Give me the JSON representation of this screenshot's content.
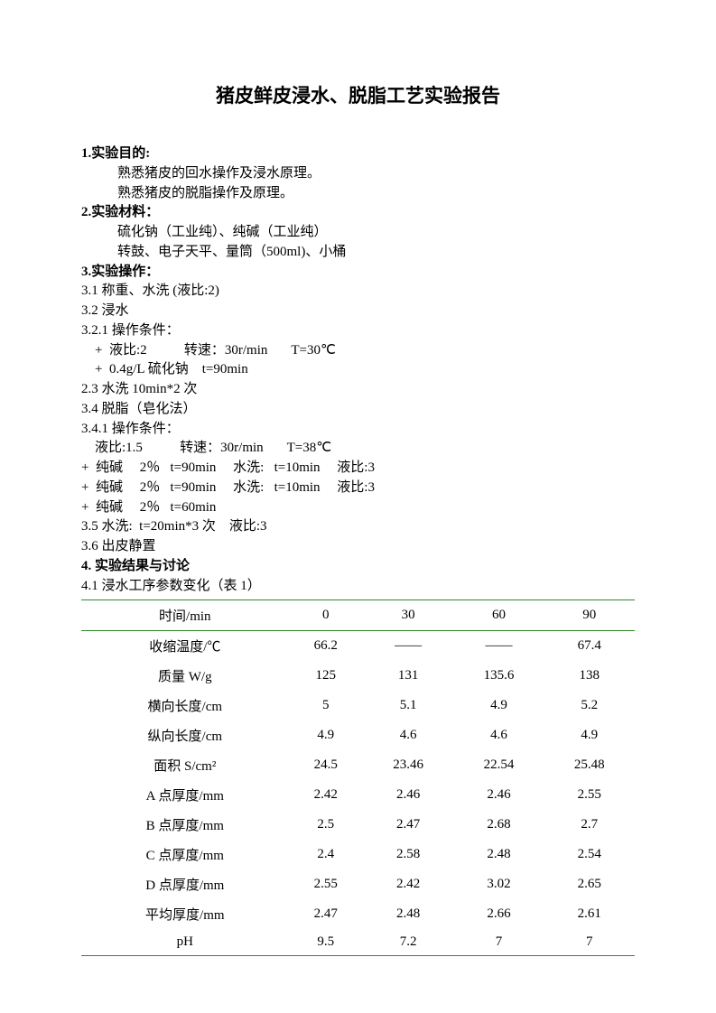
{
  "title": "猪皮鲜皮浸水、脱脂工艺实验报告",
  "s1": {
    "h": "1.实验目的:",
    "p1": "熟悉猪皮的回水操作及浸水原理。",
    "p2": "熟悉猪皮的脱脂操作及原理。"
  },
  "s2": {
    "h": "2.实验材料：",
    "p1": "硫化钠（工业纯）、纯碱（工业纯）",
    "p2": "转鼓、电子天平、量筒（500ml)、小桶"
  },
  "s3": {
    "h": "3.实验操作：",
    "p31": "3.1 称重、水洗 (液比:2)",
    "p32": "3.2 浸水",
    "p321": "3.2.1 操作条件：",
    "c1": "    +  液比:2           转速：30r/min       T=30℃",
    "c2": "    +  0.4g/L 硫化钠    t=90min",
    "p23": "2.3 水洗 10min*2 次",
    "p34": "3.4 脱脂（皂化法）",
    "p341": "3.4.1 操作条件：",
    "c3": "    液比:1.5           转速：30r/min       T=38℃",
    "c4": "+  纯碱     2％   t=90min     水洗:   t=10min     液比:3",
    "c5": "+  纯碱     2％   t=90min     水洗:   t=10min     液比:3",
    "c6": "+  纯碱     2％   t=60min",
    "p35": "3.5 水洗:  t=20min*3 次    液比:3",
    "p36": "3.6 出皮静置"
  },
  "s4": {
    "h": "4. 实验结果与讨论",
    "p41": "4.1 浸水工序参数变化（表 1）"
  },
  "table": {
    "headers": [
      "时间/min",
      "0",
      "30",
      "60",
      "90"
    ],
    "rows": [
      [
        "收缩温度/℃",
        "66.2",
        "——",
        "——",
        "67.4"
      ],
      [
        "质量 W/g",
        "125",
        "131",
        "135.6",
        "138"
      ],
      [
        "横向长度/cm",
        "5",
        "5.1",
        "4.9",
        "5.2"
      ],
      [
        "纵向长度/cm",
        "4.9",
        "4.6",
        "4.6",
        "4.9"
      ],
      [
        "面积 S/cm²",
        "24.5",
        "23.46",
        "22.54",
        "25.48"
      ],
      [
        "A 点厚度/mm",
        "2.42",
        "2.46",
        "2.46",
        "2.55"
      ],
      [
        "B 点厚度/mm",
        "2.5",
        "2.47",
        "2.68",
        "2.7"
      ],
      [
        "C 点厚度/mm",
        "2.4",
        "2.58",
        "2.48",
        "2.54"
      ],
      [
        "D 点厚度/mm",
        "2.55",
        "2.42",
        "3.02",
        "2.65"
      ],
      [
        "平均厚度/mm",
        "2.47",
        "2.48",
        "2.66",
        "2.61"
      ],
      [
        "pH",
        "9.5",
        "7.2",
        "7",
        "7"
      ]
    ],
    "border_color": "#2a8a2a"
  }
}
